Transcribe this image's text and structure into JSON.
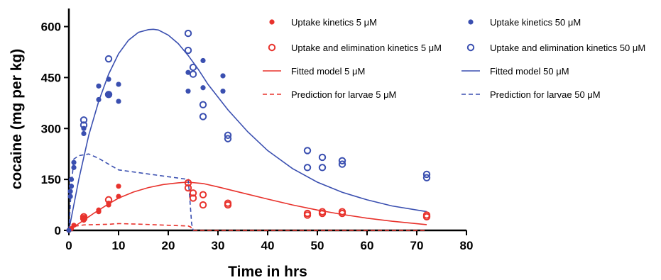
{
  "chart_data": {
    "type": "scatter",
    "xlabel": "Time in hrs",
    "ylabel": "cocaine (mg per kg)",
    "xlim": [
      0,
      80
    ],
    "ylim": [
      0,
      650
    ],
    "xticks": [
      0,
      10,
      20,
      30,
      40,
      50,
      60,
      70,
      80
    ],
    "yticks": [
      0,
      150,
      300,
      450,
      600
    ],
    "grid": false,
    "legend_placement": "top-right",
    "colors": {
      "red": "#e8322c",
      "blue": "#3a4fb0"
    },
    "series": [
      {
        "name": "Uptake kinetics 5 μM",
        "kind": "filled-dot",
        "color": "#e8322c",
        "points": [
          [
            0,
            0
          ],
          [
            0.5,
            5
          ],
          [
            1,
            15
          ],
          [
            3,
            30
          ],
          [
            3,
            35
          ],
          [
            6,
            55
          ],
          [
            6,
            60
          ],
          [
            8,
            75
          ],
          [
            8,
            80
          ],
          [
            10,
            100
          ],
          [
            10,
            130
          ]
        ]
      },
      {
        "name": "Uptake kinetics 50 μM",
        "kind": "filled-dot",
        "color": "#3a4fb0",
        "points": [
          [
            0,
            0
          ],
          [
            0.3,
            100
          ],
          [
            0.3,
            115
          ],
          [
            0.5,
            130
          ],
          [
            0.5,
            150
          ],
          [
            1,
            185
          ],
          [
            1,
            200
          ],
          [
            3,
            285
          ],
          [
            3,
            300
          ],
          [
            6,
            385
          ],
          [
            6,
            425
          ],
          [
            8,
            400
          ],
          [
            8,
            445
          ],
          [
            10,
            380
          ],
          [
            10,
            430
          ],
          [
            24,
            410
          ],
          [
            24,
            465
          ],
          [
            27,
            420
          ],
          [
            27,
            500
          ],
          [
            31,
            410
          ],
          [
            31,
            455
          ]
        ]
      },
      {
        "name": "Uptake and elimination kinetics 5 μM",
        "kind": "open-circle",
        "color": "#e8322c",
        "points": [
          [
            3,
            35
          ],
          [
            3,
            40
          ],
          [
            8,
            90
          ],
          [
            24,
            125
          ],
          [
            24,
            140
          ],
          [
            25,
            95
          ],
          [
            25,
            110
          ],
          [
            27,
            75
          ],
          [
            27,
            105
          ],
          [
            32,
            75
          ],
          [
            32,
            80
          ],
          [
            48,
            45
          ],
          [
            48,
            50
          ],
          [
            51,
            50
          ],
          [
            51,
            55
          ],
          [
            55,
            50
          ],
          [
            55,
            55
          ],
          [
            72,
            40
          ],
          [
            72,
            45
          ]
        ]
      },
      {
        "name": "Uptake and elimination kinetics 50 μM",
        "kind": "open-circle",
        "color": "#3a4fb0",
        "points": [
          [
            3,
            310
          ],
          [
            3,
            325
          ],
          [
            8,
            400
          ],
          [
            8,
            505
          ],
          [
            24,
            530
          ],
          [
            24,
            580
          ],
          [
            25,
            460
          ],
          [
            25,
            480
          ],
          [
            27,
            335
          ],
          [
            27,
            370
          ],
          [
            32,
            270
          ],
          [
            32,
            280
          ],
          [
            48,
            185
          ],
          [
            48,
            235
          ],
          [
            51,
            185
          ],
          [
            51,
            215
          ],
          [
            55,
            195
          ],
          [
            55,
            205
          ],
          [
            72,
            155
          ],
          [
            72,
            165
          ]
        ]
      },
      {
        "name": "Fitted model 5 μM",
        "kind": "solid-line",
        "color": "#e8322c",
        "points": [
          [
            0,
            0
          ],
          [
            2,
            20
          ],
          [
            5,
            50
          ],
          [
            8,
            78
          ],
          [
            10,
            95
          ],
          [
            13,
            113
          ],
          [
            16,
            126
          ],
          [
            19,
            135
          ],
          [
            22,
            140
          ],
          [
            24,
            142
          ],
          [
            27,
            138
          ],
          [
            30,
            128
          ],
          [
            35,
            110
          ],
          [
            40,
            92
          ],
          [
            45,
            75
          ],
          [
            50,
            60
          ],
          [
            55,
            47
          ],
          [
            60,
            36
          ],
          [
            65,
            27
          ],
          [
            72,
            17
          ]
        ]
      },
      {
        "name": "Fitted model 50 μM",
        "kind": "solid-line",
        "color": "#3a4fb0",
        "points": [
          [
            0,
            0
          ],
          [
            2,
            150
          ],
          [
            4,
            280
          ],
          [
            6,
            380
          ],
          [
            8,
            460
          ],
          [
            10,
            520
          ],
          [
            12,
            560
          ],
          [
            14,
            583
          ],
          [
            16,
            591
          ],
          [
            17,
            592
          ],
          [
            18,
            590
          ],
          [
            20,
            575
          ],
          [
            22,
            550
          ],
          [
            24,
            515
          ],
          [
            26,
            475
          ],
          [
            28,
            430
          ],
          [
            32,
            355
          ],
          [
            36,
            290
          ],
          [
            40,
            235
          ],
          [
            45,
            182
          ],
          [
            50,
            142
          ],
          [
            55,
            112
          ],
          [
            60,
            90
          ],
          [
            65,
            72
          ],
          [
            72,
            55
          ]
        ]
      },
      {
        "name": "Prediction for larvae 5 μM",
        "kind": "dashed-line",
        "color": "#e8322c",
        "points": [
          [
            0,
            0
          ],
          [
            1,
            12
          ],
          [
            3,
            16
          ],
          [
            5,
            17
          ],
          [
            8,
            18
          ],
          [
            10,
            20
          ],
          [
            15,
            18
          ],
          [
            20,
            15
          ],
          [
            24,
            13
          ],
          [
            24.5,
            10
          ],
          [
            25,
            0
          ],
          [
            72,
            0
          ]
        ]
      },
      {
        "name": "Prediction for larvae 50 μM",
        "kind": "dashed-line",
        "color": "#3a4fb0",
        "points": [
          [
            0,
            0
          ],
          [
            0.5,
            130
          ],
          [
            1,
            210
          ],
          [
            2,
            220
          ],
          [
            4,
            225
          ],
          [
            6,
            212
          ],
          [
            8,
            195
          ],
          [
            10,
            178
          ],
          [
            15,
            168
          ],
          [
            20,
            158
          ],
          [
            24,
            150
          ],
          [
            24.3,
            100
          ],
          [
            24.7,
            20
          ],
          [
            25,
            0
          ]
        ]
      }
    ]
  }
}
